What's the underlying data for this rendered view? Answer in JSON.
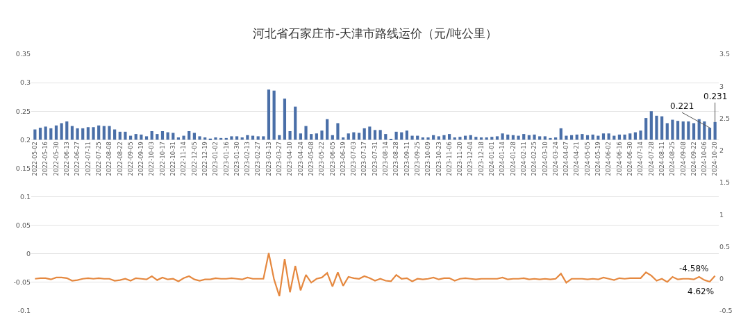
{
  "chart_data": {
    "type": "bar",
    "title": "河北省石家庄市-天津市路线运价（元/吨公里）",
    "categories": [
      "2022-05-02",
      null,
      "2022-05-16",
      null,
      "2022-05-30",
      null,
      "2022-06-13",
      null,
      "2022-06-27",
      null,
      "2022-07-11",
      null,
      "2022-07-25",
      null,
      "2022-08-08",
      null,
      "2022-08-22",
      null,
      "2022-09-05",
      null,
      "2022-09-19",
      null,
      "2022-10-03",
      null,
      "2022-10-17",
      null,
      "2022-10-31",
      null,
      "2022-11-14",
      null,
      "2022-12-05",
      null,
      "2022-12-19",
      null,
      "2023-01-02",
      null,
      "2023-01-16",
      null,
      "2023-01-30",
      null,
      "2023-02-13",
      null,
      "2023-02-27",
      null,
      "2023-03-13",
      null,
      "2023-03-27",
      null,
      "2023-04-10",
      null,
      "2023-04-24",
      null,
      "2023-05-08",
      null,
      "2023-05-22",
      null,
      "2023-06-05",
      null,
      "2023-06-19",
      null,
      "2023-07-03",
      null,
      "2023-07-17",
      null,
      "2023-07-31",
      null,
      "2023-08-14",
      null,
      "2023-08-28",
      null,
      "2023-09-11",
      null,
      "2023-09-25",
      null,
      "2023-10-09",
      null,
      "2023-10-23",
      null,
      "2023-11-06",
      null,
      "2023-11-20",
      null,
      "2023-12-04",
      null,
      "2023-12-18",
      null,
      "2024-01-01",
      null,
      "2024-01-14",
      null,
      "2024-01-28",
      null,
      "2024-02-11",
      null,
      "2024-02-25",
      null,
      "2024-03-10",
      null,
      "2024-03-24",
      null,
      "2024-04-07",
      null,
      "2024-04-21",
      null,
      "2024-05-05",
      null,
      "2024-05-19",
      null,
      "2024-06-02",
      null,
      "2024-06-16",
      null,
      "2024-06-30",
      null,
      "2024-07-14",
      null,
      "2024-07-28",
      null,
      "2024-08-11",
      null,
      "2024-08-25",
      null,
      "2024-09-08",
      null,
      "2024-09-22",
      null,
      "2024-10-06",
      null,
      "2024-10-20"
    ],
    "series": [
      {
        "color": "#4a6fa8",
        "base": [
          0.2,
          0.2,
          0.2,
          0.2,
          0.2,
          0.2,
          0.2,
          0.2,
          0.2,
          0.2,
          0.2,
          0.2,
          0.2,
          0.2,
          0.2,
          0.2,
          0.2,
          0.2,
          0.2,
          0.2,
          0.2,
          0.2,
          0.2,
          0.2,
          0.2,
          0.2,
          0.2,
          0.2,
          0.2,
          0.2,
          0.2,
          0.2,
          0.2,
          0.2,
          0.2,
          0.2,
          0.2,
          0.2,
          0.2,
          0.2,
          0.2,
          0.2,
          0.2,
          0.2,
          0.2,
          0.2,
          0.2,
          0.2,
          0.2,
          0.2,
          0.2,
          0.2,
          0.2,
          0.2,
          0.2,
          0.2,
          0.2,
          0.2,
          0.2,
          0.2,
          0.2,
          0.2,
          0.2,
          0.2,
          0.2,
          0.2,
          0.2,
          0.2,
          0.2,
          0.2,
          0.2,
          0.2,
          0.2,
          0.2,
          0.2,
          0.2,
          0.2,
          0.2,
          0.2,
          0.2,
          0.2,
          0.2,
          0.2,
          0.2,
          0.2,
          0.2,
          0.2,
          0.2,
          0.2,
          0.2,
          0.2,
          0.2,
          0.2,
          0.2,
          0.2,
          0.2,
          0.2,
          0.2,
          0.2,
          0.2,
          0.2,
          0.2,
          0.2,
          0.2,
          0.2,
          0.2,
          0.2,
          0.2,
          0.2,
          0.2,
          0.2,
          0.2,
          0.2,
          0.2,
          0.2,
          0.2,
          0.2,
          0.2,
          0.2,
          0.2,
          0.2,
          0.2,
          0.2,
          0.2,
          0.2,
          0.2,
          0.2,
          0.2,
          0.2
        ],
        "values": [
          0.018,
          0.021,
          0.023,
          0.02,
          0.025,
          0.029,
          0.032,
          0.024,
          0.02,
          0.02,
          0.022,
          0.022,
          0.025,
          0.024,
          0.024,
          0.018,
          0.014,
          0.014,
          0.007,
          0.01,
          0.009,
          0.006,
          0.015,
          0.01,
          0.015,
          0.013,
          0.012,
          0.004,
          0.007,
          0.015,
          0.012,
          0.006,
          0.004,
          0.002,
          0.004,
          0.003,
          0.003,
          0.006,
          0.006,
          0.004,
          0.008,
          0.007,
          0.006,
          0.006,
          0.088,
          0.086,
          0.008,
          0.072,
          0.015,
          0.058,
          0.011,
          0.024,
          0.01,
          0.011,
          0.016,
          0.036,
          0.008,
          0.029,
          0.004,
          0.011,
          0.013,
          0.012,
          0.02,
          0.023,
          0.017,
          0.017,
          0.01,
          0.001,
          0.014,
          0.013,
          0.016,
          0.007,
          0.007,
          0.004,
          0.004,
          0.008,
          0.006,
          0.008,
          0.01,
          0.004,
          0.005,
          0.007,
          0.008,
          0.005,
          0.004,
          0.004,
          0.005,
          0.006,
          0.011,
          0.009,
          0.008,
          0.007,
          0.01,
          0.008,
          0.009,
          0.006,
          0.006,
          0.003,
          0.004,
          0.02,
          0.007,
          0.008,
          0.009,
          0.01,
          0.008,
          0.009,
          0.007,
          0.011,
          0.011,
          0.007,
          0.009,
          0.009,
          0.011,
          0.013,
          0.016,
          0.038,
          0.05,
          0.042,
          0.041,
          0.029,
          0.035,
          0.033,
          0.032,
          0.032,
          0.029,
          0.036,
          0.032,
          0.021,
          0.031
        ],
        "value_labels": [
          null,
          null,
          null,
          null,
          null,
          null,
          null,
          null,
          null,
          null,
          null,
          null,
          null,
          null,
          null,
          null,
          null,
          null,
          null,
          null,
          null,
          null,
          null,
          null,
          null,
          null,
          null,
          null,
          null,
          null,
          null,
          null,
          null,
          null,
          null,
          null,
          null,
          null,
          null,
          null,
          null,
          null,
          null,
          null,
          null,
          null,
          null,
          null,
          null,
          null,
          null,
          null,
          null,
          null,
          null,
          null,
          null,
          null,
          null,
          null,
          null,
          null,
          null,
          null,
          null,
          null,
          null,
          null,
          null,
          null,
          null,
          null,
          null,
          null,
          null,
          null,
          null,
          null,
          null,
          null,
          null,
          null,
          null,
          null,
          null,
          null,
          null,
          null,
          null,
          null,
          null,
          null,
          null,
          null,
          null,
          null,
          null,
          null,
          null,
          null,
          null,
          null,
          null,
          null,
          null,
          null,
          null,
          null,
          null,
          null,
          null,
          null,
          null,
          null,
          null,
          null,
          null,
          null,
          null,
          null,
          null,
          null,
          null,
          null,
          null,
          null,
          null,
          "0.221",
          "0.231"
        ]
      },
      {
        "type": "line",
        "axis": "y2",
        "color": "#e5883f",
        "values": [
          0.0,
          0.01,
          0.01,
          -0.01,
          0.02,
          0.02,
          0.01,
          -0.03,
          -0.02,
          0.0,
          0.01,
          0.0,
          0.01,
          0.0,
          0.0,
          -0.03,
          -0.02,
          0.0,
          -0.03,
          0.01,
          0.0,
          -0.01,
          0.04,
          -0.02,
          0.02,
          -0.01,
          0.0,
          -0.04,
          0.01,
          0.04,
          -0.01,
          -0.03,
          -0.01,
          -0.01,
          0.01,
          0.0,
          0.0,
          0.01,
          0.0,
          -0.01,
          0.02,
          0.0,
          0.0,
          0.0,
          0.4,
          -0.01,
          -0.27,
          0.31,
          -0.21,
          0.2,
          -0.18,
          0.06,
          -0.06,
          0.0,
          0.02,
          0.09,
          -0.12,
          0.1,
          -0.11,
          0.03,
          0.01,
          0.0,
          0.04,
          0.01,
          -0.03,
          0.0,
          -0.03,
          -0.04,
          0.06,
          0.0,
          0.01,
          -0.04,
          0.0,
          -0.01,
          0.0,
          0.02,
          -0.01,
          0.01,
          0.01,
          -0.03,
          0.0,
          0.01,
          0.0,
          -0.01,
          0.0,
          0.0,
          0.0,
          0.0,
          0.02,
          -0.01,
          0.0,
          0.0,
          0.01,
          -0.01,
          0.0,
          -0.01,
          0.0,
          -0.01,
          0.0,
          0.08,
          -0.06,
          0.0,
          0.0,
          0.0,
          -0.01,
          0.0,
          -0.01,
          0.02,
          0.0,
          -0.02,
          0.01,
          0.0,
          0.01,
          0.01,
          0.01,
          0.1,
          0.05,
          -0.03,
          0.0,
          -0.05,
          0.03,
          -0.01,
          0.0,
          0.0,
          -0.01,
          0.03,
          -0.02,
          -0.0458,
          0.0462
        ],
        "value_labels": [
          null,
          null,
          null,
          null,
          null,
          null,
          null,
          null,
          null,
          null,
          null,
          null,
          null,
          null,
          null,
          null,
          null,
          null,
          null,
          null,
          null,
          null,
          null,
          null,
          null,
          null,
          null,
          null,
          null,
          null,
          null,
          null,
          null,
          null,
          null,
          null,
          null,
          null,
          null,
          null,
          null,
          null,
          null,
          null,
          null,
          null,
          null,
          null,
          null,
          null,
          null,
          null,
          null,
          null,
          null,
          null,
          null,
          null,
          null,
          null,
          null,
          null,
          null,
          null,
          null,
          null,
          null,
          null,
          null,
          null,
          null,
          null,
          null,
          null,
          null,
          null,
          null,
          null,
          null,
          null,
          null,
          null,
          null,
          null,
          null,
          null,
          null,
          null,
          null,
          null,
          null,
          null,
          null,
          null,
          null,
          null,
          null,
          null,
          null,
          null,
          null,
          null,
          null,
          null,
          null,
          null,
          null,
          null,
          null,
          null,
          null,
          null,
          null,
          null,
          null,
          null,
          null,
          null,
          null,
          null,
          null,
          null,
          null,
          null,
          null,
          null,
          null,
          "-4.58%",
          "4.62%"
        ]
      }
    ],
    "ylim": [
      -0.1,
      0.35
    ],
    "yticks": [
      -0.1,
      -0.05,
      0,
      0.05,
      0.1,
      0.15,
      0.2,
      0.25,
      0.3,
      0.35
    ],
    "y2lim": [
      -0.5,
      3.5
    ],
    "y2ticks": [
      -0.5,
      0,
      0.5,
      1,
      1.5,
      2,
      2.5,
      3,
      3.5
    ],
    "grid": "y",
    "marker": "none",
    "line_style": "solid"
  }
}
